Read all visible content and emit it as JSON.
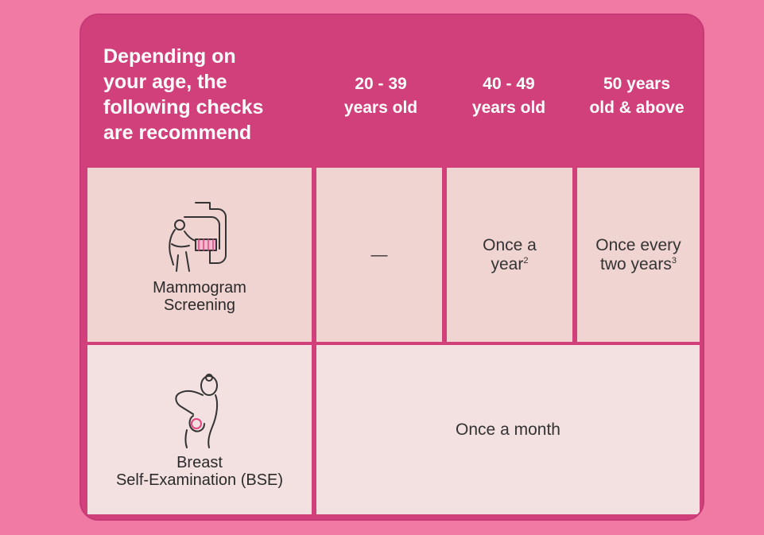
{
  "header": {
    "intro": "Depending on\nyour age, the\nfollowing checks\nare recommend",
    "age_groups": [
      "20 - 39\nyears old",
      "40 - 49\nyears old",
      "50 years\nold & above"
    ]
  },
  "rows": [
    {
      "name": "Mammogram\nScreening",
      "icon": "mammogram-machine-icon",
      "values": [
        {
          "text": "—",
          "sup": ""
        },
        {
          "text": "Once a\nyear",
          "sup": "2"
        },
        {
          "text": "Once every\ntwo years",
          "sup": "3"
        }
      ]
    },
    {
      "name": "Breast\nSelf-Examination (BSE)",
      "icon": "self-exam-icon",
      "value": "Once a month"
    }
  ],
  "colors": {
    "background": "#f07aa3",
    "header": "#d2407c",
    "row1": "#f0d4d2",
    "row2": "#f3e1e2",
    "accent": "#e0457f"
  }
}
